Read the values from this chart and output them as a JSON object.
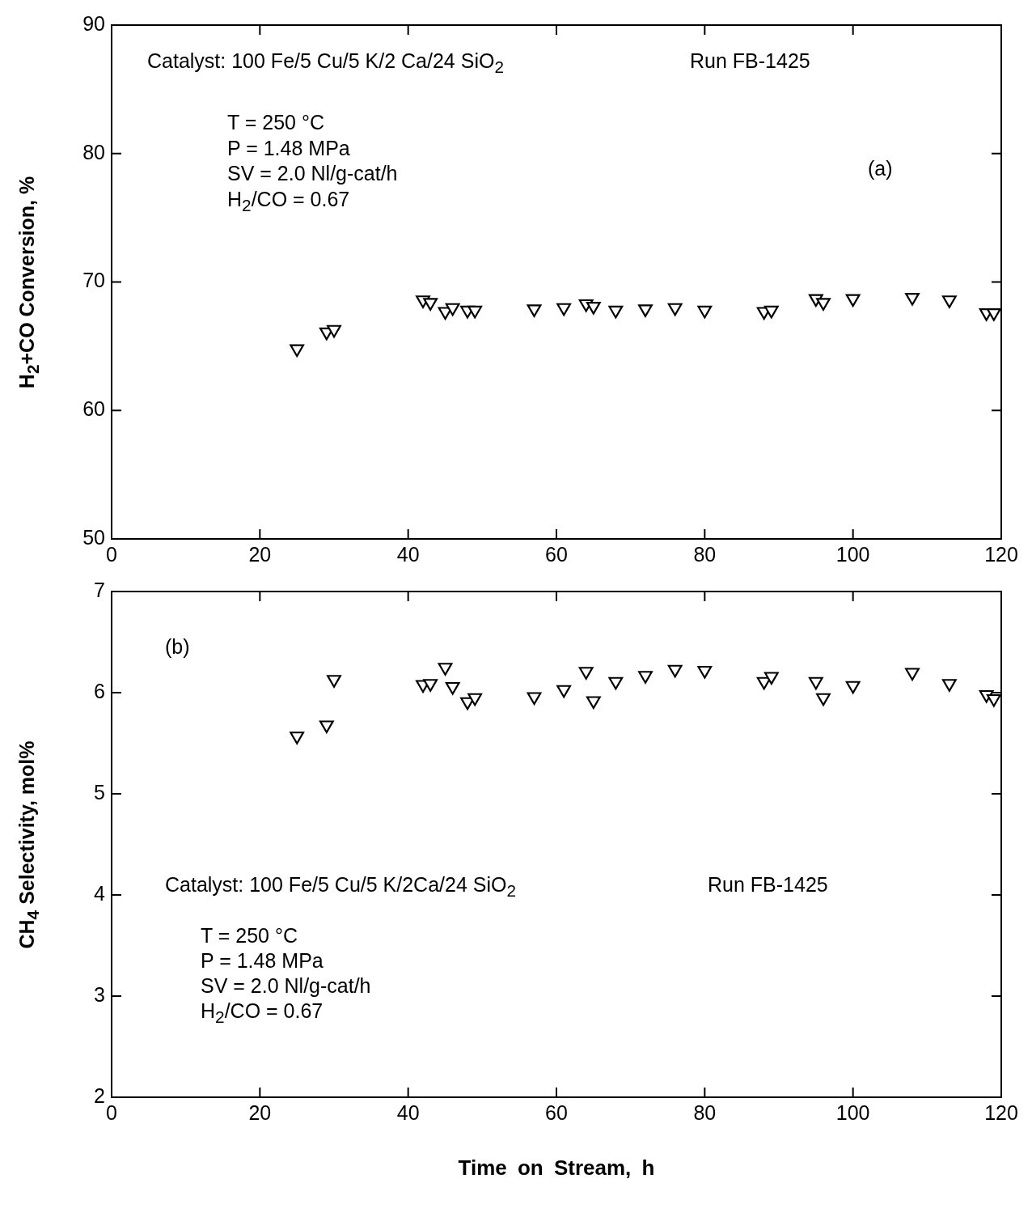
{
  "chart_data": [
    {
      "type": "scatter",
      "ylabel": "H$_{2}$+CO Conversion, %",
      "xlim": [
        0,
        120
      ],
      "xticks": [
        0,
        20,
        40,
        60,
        80,
        100,
        120
      ],
      "ylim": [
        50,
        90
      ],
      "yticks": [
        50,
        60,
        70,
        80,
        90
      ],
      "marker": "triangle",
      "grid": false,
      "annotations": [
        "Catalyst: 100 Fe/5 Cu/5 K/2 Ca/24 SiO$_{2}$",
        "Run FB-1425",
        "T = 250 °C",
        "P = 1.48 MPa",
        "SV = 2.0 Nl/g-cat/h",
        "H$_{2}$/CO = 0.67",
        "(a)"
      ],
      "series": [
        {
          "color": "#000000",
          "x": [
            25,
            29,
            30,
            42,
            43,
            45,
            46,
            48,
            49,
            57,
            61,
            64,
            65,
            68,
            72,
            76,
            80,
            88,
            89,
            95,
            96,
            100,
            108,
            113,
            118,
            119
          ],
          "values": [
            64.8,
            66.1,
            66.3,
            68.6,
            68.4,
            67.7,
            68.0,
            67.8,
            67.8,
            67.9,
            68.0,
            68.3,
            68.1,
            67.8,
            67.9,
            68.0,
            67.8,
            67.7,
            67.8,
            68.7,
            68.4,
            68.7,
            68.8,
            68.6,
            67.6,
            67.6
          ]
        }
      ]
    },
    {
      "type": "scatter",
      "xlabel": "Time on Stream, h",
      "ylabel": "CH$_{4}$ Selectivity,  mol%",
      "xlim": [
        0,
        120
      ],
      "xticks": [
        0,
        20,
        40,
        60,
        80,
        100,
        120
      ],
      "ylim": [
        2,
        7
      ],
      "yticks": [
        2,
        3,
        4,
        5,
        6,
        7
      ],
      "marker": "triangle",
      "grid": false,
      "annotations": [
        "(b)",
        "Catalyst: 100 Fe/5 Cu/5 K/2Ca/24 SiO$_{2}$",
        "Run FB-1425",
        "T = 250 °C",
        "P = 1.48 MPa",
        "SV = 2.0 Nl/g-cat/h",
        "H$_{2}$/CO = 0.67"
      ],
      "series": [
        {
          "color": "#000000",
          "x": [
            25,
            29,
            30,
            42,
            43,
            45,
            46,
            48,
            49,
            57,
            61,
            64,
            65,
            68,
            72,
            76,
            80,
            88,
            89,
            95,
            96,
            100,
            108,
            113,
            118,
            119
          ],
          "values": [
            5.57,
            5.68,
            6.13,
            6.08,
            6.09,
            6.25,
            6.06,
            5.91,
            5.95,
            5.96,
            6.03,
            6.21,
            5.92,
            6.11,
            6.17,
            6.23,
            6.22,
            6.11,
            6.16,
            6.11,
            5.95,
            6.07,
            6.2,
            6.09,
            5.98,
            5.94
          ]
        }
      ]
    }
  ]
}
